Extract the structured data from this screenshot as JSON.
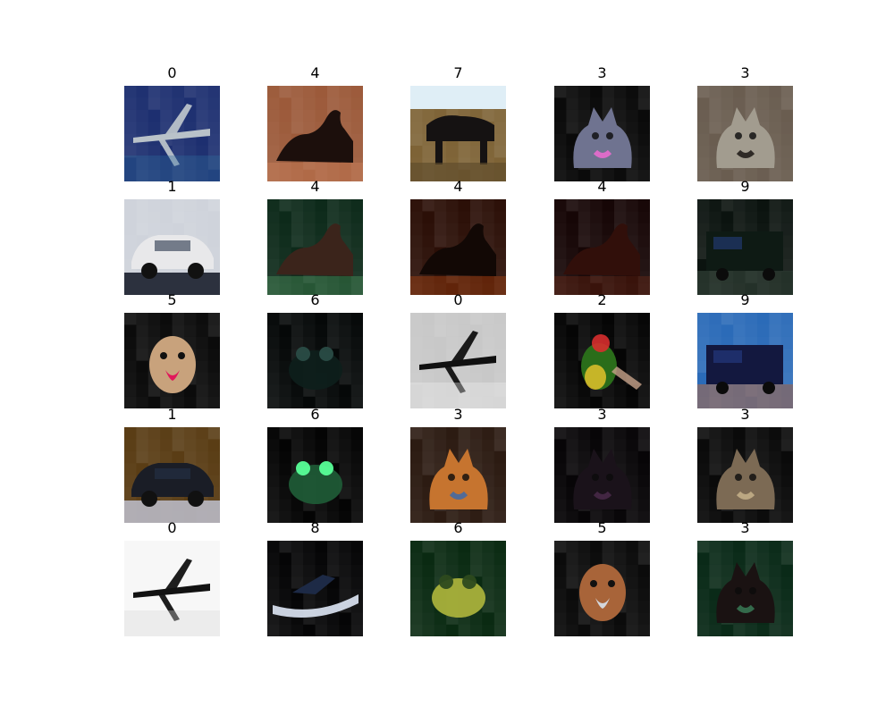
{
  "grid": {
    "rows": 5,
    "cols": 5,
    "items": [
      {
        "label": "0",
        "subject": "airplane",
        "colors": {
          "bg": "#1d2f70",
          "main": "#b9c2c9",
          "accent": "#2d6e9e"
        }
      },
      {
        "label": "4",
        "subject": "deer",
        "colors": {
          "bg": "#9c5a3a",
          "main": "#1c0f0c",
          "accent": "#d88a62"
        }
      },
      {
        "label": "7",
        "subject": "horse",
        "colors": {
          "bg": "#7e6336",
          "main": "#151212",
          "accent": "#dfeef6"
        }
      },
      {
        "label": "3",
        "subject": "cat",
        "colors": {
          "bg": "#0a0a0a",
          "main": "#6f7390",
          "accent": "#f06bd2"
        }
      },
      {
        "label": "3",
        "subject": "cat",
        "colors": {
          "bg": "#6a5d50",
          "main": "#a29c8f",
          "accent": "#1b1614"
        }
      },
      {
        "label": "1",
        "subject": "automobile",
        "colors": {
          "bg": "#cfd3db",
          "main": "#e8e8ea",
          "accent": "#1a1f2c"
        }
      },
      {
        "label": "4",
        "subject": "deer",
        "colors": {
          "bg": "#0d2a1a",
          "main": "#3b241b",
          "accent": "#5aa86a"
        }
      },
      {
        "label": "4",
        "subject": "deer",
        "colors": {
          "bg": "#2b0f07",
          "main": "#120805",
          "accent": "#c54d12"
        }
      },
      {
        "label": "4",
        "subject": "deer",
        "colors": {
          "bg": "#160606",
          "main": "#310f0a",
          "accent": "#7a2d16"
        }
      },
      {
        "label": "9",
        "subject": "truck",
        "colors": {
          "bg": "#0b130f",
          "main": "#0e1a14",
          "accent": "#3b4a40"
        }
      },
      {
        "label": "5",
        "subject": "dog",
        "colors": {
          "bg": "#0b0b0b",
          "main": "#c8a27c",
          "accent": "#e1175b"
        }
      },
      {
        "label": "6",
        "subject": "frog",
        "colors": {
          "bg": "#050808",
          "main": "#0e1f1b",
          "accent": "#2a4c46"
        }
      },
      {
        "label": "0",
        "subject": "airplane",
        "colors": {
          "bg": "#c8c8c8",
          "main": "#101010",
          "accent": "#f0f0f0"
        }
      },
      {
        "label": "2",
        "subject": "bird",
        "colors": {
          "bg": "#050505",
          "main": "#2a6d1a",
          "accent": "#e2c22c"
        }
      },
      {
        "label": "9",
        "subject": "truck",
        "colors": {
          "bg": "#2b6bb8",
          "main": "#13183f",
          "accent": "#b06a44"
        }
      },
      {
        "label": "1",
        "subject": "automobile",
        "colors": {
          "bg": "#5a3d15",
          "main": "#1a1d26",
          "accent": "#b9b9c4"
        }
      },
      {
        "label": "6",
        "subject": "frog",
        "colors": {
          "bg": "#040404",
          "main": "#1f5a36",
          "accent": "#59ff98"
        }
      },
      {
        "label": "3",
        "subject": "cat",
        "colors": {
          "bg": "#2c1b12",
          "main": "#c6742f",
          "accent": "#3c6aa9"
        }
      },
      {
        "label": "3",
        "subject": "cat",
        "colors": {
          "bg": "#070507",
          "main": "#1a121a",
          "accent": "#4a2a4a"
        }
      },
      {
        "label": "3",
        "subject": "cat",
        "colors": {
          "bg": "#0a0a0a",
          "main": "#7c6a54",
          "accent": "#c7b18b"
        }
      },
      {
        "label": "0",
        "subject": "airplane",
        "colors": {
          "bg": "#f7f7f7",
          "main": "#121212",
          "accent": "#d8d8d8"
        }
      },
      {
        "label": "8",
        "subject": "ship",
        "colors": {
          "bg": "#050506",
          "main": "#1d2a46",
          "accent": "#dfe8f6"
        }
      },
      {
        "label": "6",
        "subject": "frog",
        "colors": {
          "bg": "#0a2a12",
          "main": "#a9b13b",
          "accent": "#2d4a1d"
        }
      },
      {
        "label": "5",
        "subject": "dog",
        "colors": {
          "bg": "#0b0b0b",
          "main": "#a86439",
          "accent": "#d3d6db"
        }
      },
      {
        "label": "3",
        "subject": "cat",
        "colors": {
          "bg": "#0a2a18",
          "main": "#1a1212",
          "accent": "#3a7a56"
        }
      }
    ]
  }
}
